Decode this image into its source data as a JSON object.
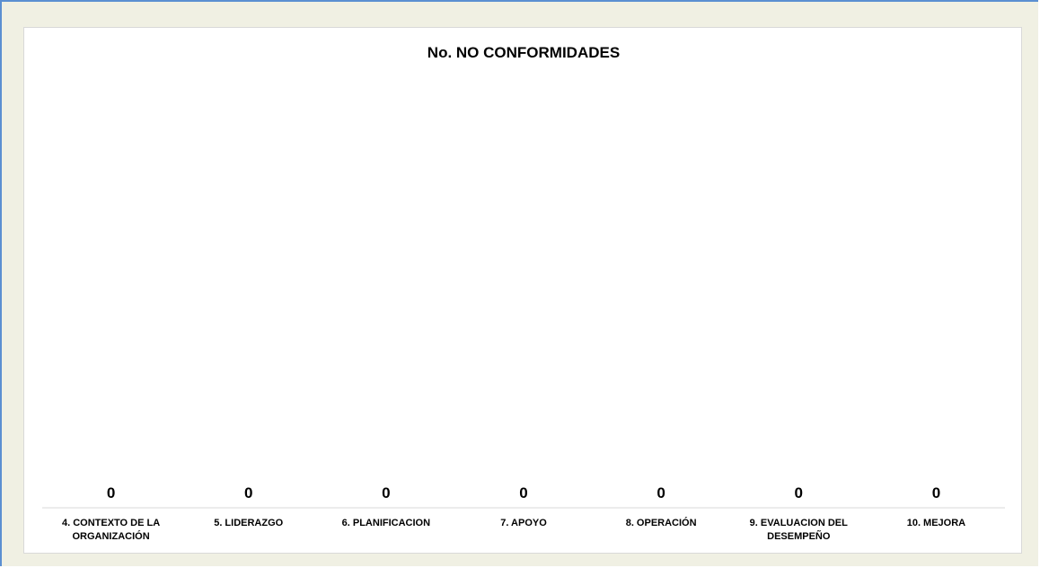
{
  "chart_data": {
    "type": "bar",
    "title": "No. NO CONFORMIDADES",
    "xlabel": "",
    "ylabel": "",
    "categories": [
      [
        "4. CONTEXTO DE LA",
        "ORGANIZACIÓN"
      ],
      [
        "5. LIDERAZGO"
      ],
      [
        "6. PLANIFICACION"
      ],
      [
        "7. APOYO"
      ],
      [
        "8. OPERACIÓN"
      ],
      [
        "9. EVALUACION DEL",
        "DESEMPEÑO"
      ],
      [
        "10. MEJORA"
      ]
    ],
    "values": [
      0,
      0,
      0,
      0,
      0,
      0,
      0
    ],
    "value_labels": [
      "0",
      "0",
      "0",
      "0",
      "0",
      "0",
      "0"
    ],
    "grid": false,
    "legend": "none",
    "colors": {
      "frame_border": "#5b8fd1",
      "frame_bg": "#f0f0e3",
      "plot_bg": "#ffffff",
      "axis": "#d9d9d9"
    }
  }
}
